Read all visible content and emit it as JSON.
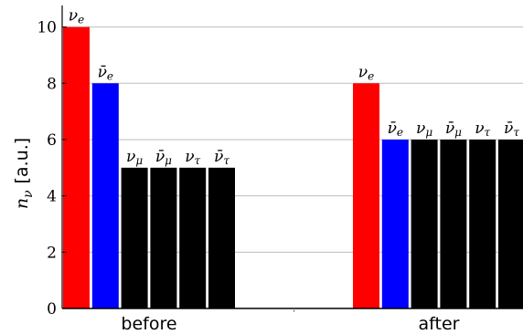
{
  "chart_data": {
    "type": "bar",
    "ylabel_symbol": "n",
    "ylabel_subscript": "ν",
    "ylabel_unit": "[a.u.]",
    "xlabel": "",
    "ylim": [
      0,
      10.7
    ],
    "yticks": [
      0,
      2,
      4,
      6,
      8,
      10
    ],
    "grid": true,
    "legend": "none",
    "groups": [
      {
        "label": "before",
        "bars": [
          {
            "label": "ν",
            "label_sub": "e",
            "value": 10,
            "color": "#ff0000"
          },
          {
            "label": "ν̄",
            "label_sub": "e",
            "value": 8,
            "color": "#0000ff"
          },
          {
            "label": "ν",
            "label_sub": "μ",
            "value": 5,
            "color": "#000000"
          },
          {
            "label": "ν̄",
            "label_sub": "μ",
            "value": 5,
            "color": "#000000"
          },
          {
            "label": "ν",
            "label_sub": "τ",
            "value": 5,
            "color": "#000000"
          },
          {
            "label": "ν̄",
            "label_sub": "τ",
            "value": 5,
            "color": "#000000"
          }
        ]
      },
      {
        "label": "after",
        "bars": [
          {
            "label": "ν",
            "label_sub": "e",
            "value": 8,
            "color": "#ff0000"
          },
          {
            "label": "ν̄",
            "label_sub": "e",
            "value": 6,
            "color": "#0000ff"
          },
          {
            "label": "ν",
            "label_sub": "μ",
            "value": 6,
            "color": "#000000"
          },
          {
            "label": "ν̄",
            "label_sub": "μ",
            "value": 6,
            "color": "#000000"
          },
          {
            "label": "ν",
            "label_sub": "τ",
            "value": 6,
            "color": "#000000"
          },
          {
            "label": "ν̄",
            "label_sub": "τ",
            "value": 6,
            "color": "#000000"
          }
        ]
      }
    ]
  }
}
